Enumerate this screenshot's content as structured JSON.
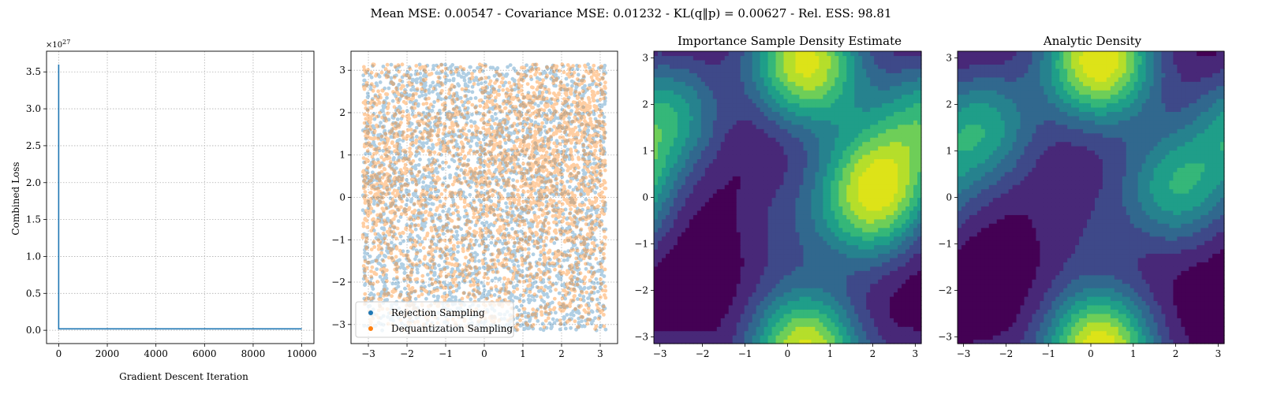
{
  "suptitle": "Mean MSE: 0.00547 - Covariance MSE: 0.01232 - KL(q‖p) = 0.00627 - Rel. ESS: 98.81",
  "colors": {
    "loss_line": "#1f77b4",
    "rejection": "#1f77b4",
    "dequant": "#ff7f0e",
    "grid": "#b0b0b0",
    "viridis": [
      "#440154",
      "#482878",
      "#3e4989",
      "#31688e",
      "#26828e",
      "#1f9e89",
      "#35b779",
      "#6ece58",
      "#b5de2b",
      "#dde318"
    ]
  },
  "chart_data": [
    {
      "type": "line",
      "title": "",
      "xlabel": "Gradient Descent Iteration",
      "ylabel": "Combined Loss",
      "y_multiplier": "×10^27",
      "y_multiplier_base": "×10",
      "y_multiplier_exp": "27",
      "xlim": [
        -500,
        10500
      ],
      "ylim": [
        -0.18,
        3.78
      ],
      "xticks": [
        0,
        2000,
        4000,
        6000,
        8000,
        10000
      ],
      "yticks": [
        0.0,
        0.5,
        1.0,
        1.5,
        2.0,
        2.5,
        3.0,
        3.5
      ],
      "xtick_labels": [
        "0",
        "2000",
        "4000",
        "6000",
        "8000",
        "10000"
      ],
      "ytick_labels": [
        "0.0",
        "0.5",
        "1.0",
        "1.5",
        "2.0",
        "2.5",
        "3.0",
        "3.5"
      ],
      "grid": true,
      "series": [
        {
          "x": [
            0,
            0,
            20,
            1000,
            2000,
            4000,
            6000,
            8000,
            10000
          ],
          "y": [
            3.6,
            0.02,
            0.02,
            0.02,
            0.02,
            0.02,
            0.02,
            0.02,
            0.02
          ]
        }
      ]
    },
    {
      "type": "scatter",
      "title": "",
      "xlabel": "",
      "ylabel": "",
      "xlim": [
        -3.45,
        3.45
      ],
      "ylim": [
        -3.45,
        3.45
      ],
      "xticks": [
        -3,
        -2,
        -1,
        0,
        1,
        2,
        3
      ],
      "yticks": [
        -3,
        -2,
        -1,
        0,
        1,
        2,
        3
      ],
      "xtick_labels": [
        "−3",
        "−2",
        "−1",
        "0",
        "1",
        "2",
        "3"
      ],
      "ytick_labels": [
        "−3",
        "−2",
        "−1",
        "0",
        "1",
        "2",
        "3"
      ],
      "grid": true,
      "legend_position": "lower-left",
      "series": [
        {
          "name": "Rejection Sampling",
          "distribution": "uniform",
          "range": [
            -3.14159,
            3.14159
          ]
        },
        {
          "name": "Dequantization Sampling",
          "distribution": "target-density",
          "range": [
            -3.14159,
            3.14159
          ]
        }
      ]
    },
    {
      "type": "heatmap",
      "title": "Importance Sample Density Estimate",
      "xlabel": "",
      "ylabel": "",
      "xlim": [
        -3.14159,
        3.14159
      ],
      "ylim": [
        -3.14159,
        3.14159
      ],
      "xticks": [
        -3,
        -2,
        -1,
        0,
        1,
        2,
        3
      ],
      "yticks": [
        -3,
        -2,
        -1,
        0,
        1,
        2,
        3
      ],
      "xtick_labels": [
        "−3",
        "−2",
        "−1",
        "0",
        "1",
        "2",
        "3"
      ],
      "ytick_labels": [
        "−3",
        "−2",
        "−1",
        "0",
        "1",
        "2",
        "3"
      ],
      "levels": 10,
      "peaks": [
        [
          0.5,
          2.7,
          1.0
        ],
        [
          2.2,
          0.5,
          0.95
        ],
        [
          -2.8,
          1.8,
          0.95
        ],
        [
          1.9,
          -0.3,
          0.85
        ],
        [
          0.3,
          -3.0,
          0.7
        ],
        [
          -0.2,
          -0.5,
          0.35
        ]
      ]
    },
    {
      "type": "heatmap",
      "title": "Analytic Density",
      "xlabel": "",
      "ylabel": "",
      "xlim": [
        -3.14159,
        3.14159
      ],
      "ylim": [
        -3.14159,
        3.14159
      ],
      "xticks": [
        -3,
        -2,
        -1,
        0,
        1,
        2,
        3
      ],
      "yticks": [
        -3,
        -2,
        -1,
        0,
        1,
        2,
        3
      ],
      "xtick_labels": [
        "−3",
        "−2",
        "−1",
        "0",
        "1",
        "2",
        "3"
      ],
      "ytick_labels": [
        "−3",
        "−2",
        "−1",
        "0",
        "1",
        "2",
        "3"
      ],
      "levels": 10,
      "peaks": [
        [
          0.2,
          2.8,
          1.0
        ],
        [
          2.0,
          0.2,
          1.0
        ],
        [
          -2.6,
          1.5,
          1.0
        ],
        [
          0.2,
          -3.1,
          0.8
        ],
        [
          -0.3,
          -0.6,
          0.3
        ]
      ]
    }
  ]
}
